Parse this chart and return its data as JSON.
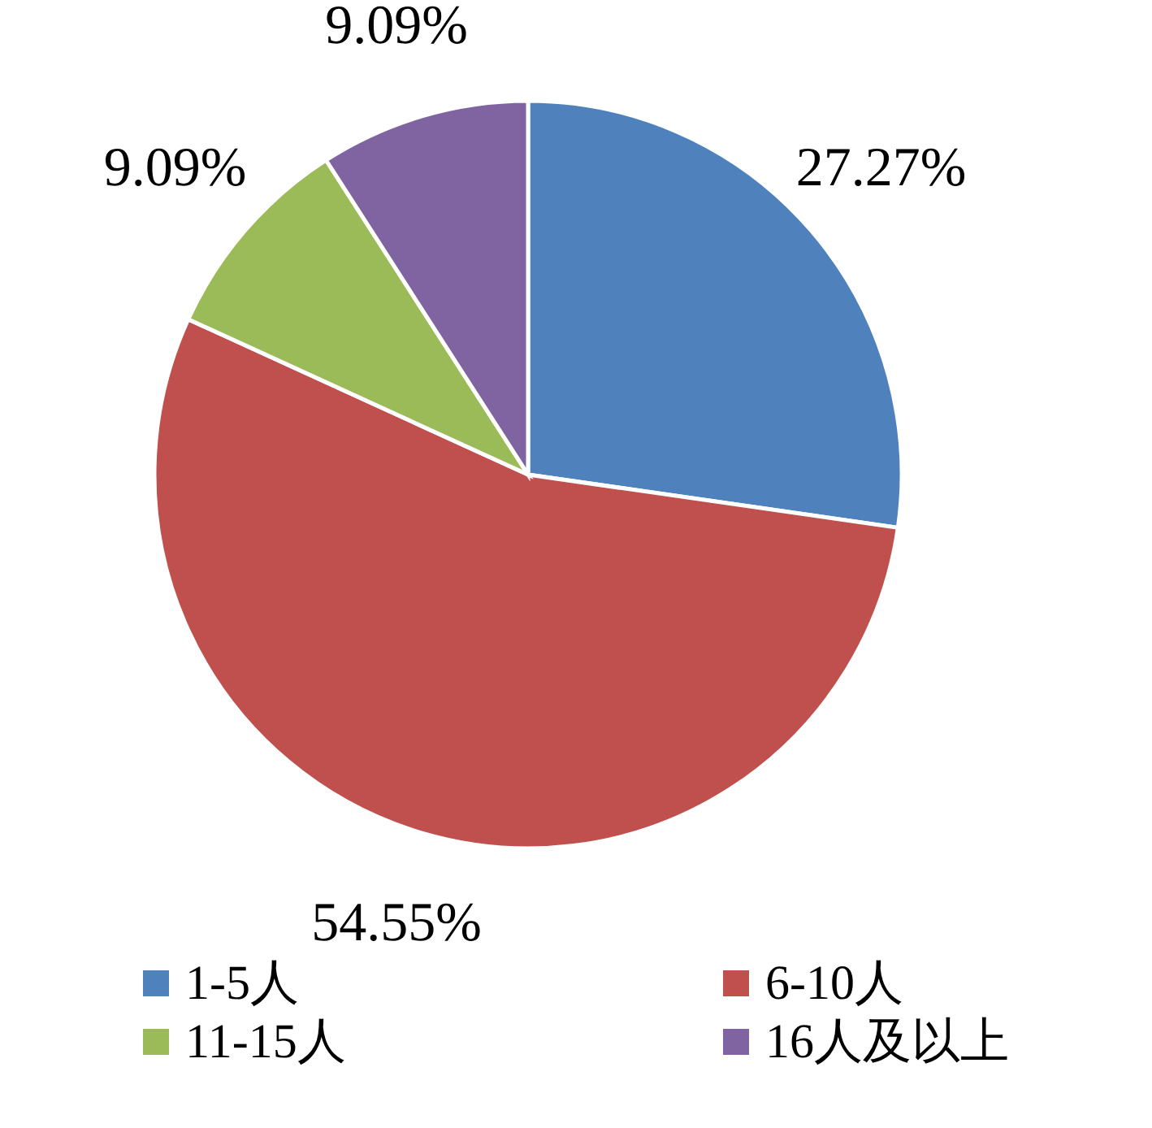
{
  "chart_data": {
    "type": "pie",
    "categories": [
      "1-5人",
      "6-10人",
      "11-15人",
      "16人及以上"
    ],
    "values": [
      27.27,
      54.55,
      9.09,
      9.09
    ],
    "colors": [
      "#4f81bd",
      "#c0504d",
      "#9bbb59",
      "#8064a2"
    ],
    "value_labels": [
      "27.27%",
      "54.55%",
      "9.09%",
      "9.09%"
    ],
    "legend": "bottom"
  }
}
